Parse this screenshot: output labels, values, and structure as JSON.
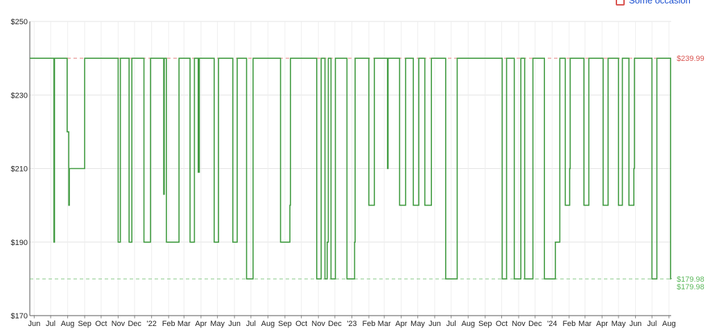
{
  "legend": {
    "item_label": "Some occasion"
  },
  "chart_data": {
    "type": "line",
    "title": "",
    "xlabel": "",
    "ylabel": "",
    "x_domain": [
      "2021-05-24",
      "2024-08-05"
    ],
    "ylim": [
      170,
      250
    ],
    "y_ticks": [
      250,
      230,
      210,
      190,
      170
    ],
    "y_tick_labels": [
      "$250",
      "$230",
      "$210",
      "$190",
      "$170"
    ],
    "x_ticks": [
      {
        "date": "2021-06-01",
        "label": "Jun"
      },
      {
        "date": "2021-07-01",
        "label": "Jul"
      },
      {
        "date": "2021-08-01",
        "label": "Aug"
      },
      {
        "date": "2021-09-01",
        "label": "Sep"
      },
      {
        "date": "2021-10-01",
        "label": "Oct"
      },
      {
        "date": "2021-11-01",
        "label": "Nov"
      },
      {
        "date": "2021-12-01",
        "label": "Dec"
      },
      {
        "date": "2022-01-01",
        "label": "'22"
      },
      {
        "date": "2022-02-01",
        "label": "Feb"
      },
      {
        "date": "2022-03-01",
        "label": "Mar"
      },
      {
        "date": "2022-04-01",
        "label": "Apr"
      },
      {
        "date": "2022-05-01",
        "label": "May"
      },
      {
        "date": "2022-06-01",
        "label": "Jun"
      },
      {
        "date": "2022-07-01",
        "label": "Jul"
      },
      {
        "date": "2022-08-01",
        "label": "Aug"
      },
      {
        "date": "2022-09-01",
        "label": "Sep"
      },
      {
        "date": "2022-10-01",
        "label": "Oct"
      },
      {
        "date": "2022-11-01",
        "label": "Nov"
      },
      {
        "date": "2022-12-01",
        "label": "Dec"
      },
      {
        "date": "2023-01-01",
        "label": "'23"
      },
      {
        "date": "2023-02-01",
        "label": "Feb"
      },
      {
        "date": "2023-03-01",
        "label": "Mar"
      },
      {
        "date": "2023-04-01",
        "label": "Apr"
      },
      {
        "date": "2023-05-01",
        "label": "May"
      },
      {
        "date": "2023-06-01",
        "label": "Jun"
      },
      {
        "date": "2023-07-01",
        "label": "Jul"
      },
      {
        "date": "2023-08-01",
        "label": "Aug"
      },
      {
        "date": "2023-09-01",
        "label": "Sep"
      },
      {
        "date": "2023-10-01",
        "label": "Oct"
      },
      {
        "date": "2023-11-01",
        "label": "Nov"
      },
      {
        "date": "2023-12-01",
        "label": "Dec"
      },
      {
        "date": "2024-01-01",
        "label": "'24"
      },
      {
        "date": "2024-02-01",
        "label": "Feb"
      },
      {
        "date": "2024-03-01",
        "label": "Mar"
      },
      {
        "date": "2024-04-01",
        "label": "Apr"
      },
      {
        "date": "2024-05-01",
        "label": "May"
      },
      {
        "date": "2024-06-01",
        "label": "Jun"
      },
      {
        "date": "2024-07-01",
        "label": "Jul"
      },
      {
        "date": "2024-08-01",
        "label": "Aug"
      }
    ],
    "grid": true,
    "reference_lines": [
      {
        "value": 239.99,
        "label": "$239.99",
        "color": "#d9534f",
        "style": "dashed"
      },
      {
        "value": 179.98,
        "label": "$179.98",
        "color": "#5cb85c",
        "style": "dashed"
      }
    ],
    "current_price_label": "$179.98",
    "series": [
      {
        "color": "#3f9a3f",
        "step": true,
        "points": [
          [
            "2021-05-24",
            239.99
          ],
          [
            "2021-07-07",
            190
          ],
          [
            "2021-07-08",
            239.99
          ],
          [
            "2021-07-31",
            220
          ],
          [
            "2021-08-03",
            200
          ],
          [
            "2021-08-04",
            210
          ],
          [
            "2021-09-01",
            239.99
          ],
          [
            "2021-11-01",
            190
          ],
          [
            "2021-11-05",
            239.99
          ],
          [
            "2021-11-21",
            190
          ],
          [
            "2021-11-26",
            239.99
          ],
          [
            "2021-12-18",
            190
          ],
          [
            "2021-12-30",
            239.99
          ],
          [
            "2022-01-23",
            203
          ],
          [
            "2022-01-24",
            239.99
          ],
          [
            "2022-01-28",
            190
          ],
          [
            "2022-02-20",
            239.99
          ],
          [
            "2022-03-12",
            190
          ],
          [
            "2022-03-20",
            239.99
          ],
          [
            "2022-03-27",
            209
          ],
          [
            "2022-03-29",
            239.99
          ],
          [
            "2022-04-25",
            190
          ],
          [
            "2022-05-03",
            239.99
          ],
          [
            "2022-05-29",
            190
          ],
          [
            "2022-06-06",
            239.99
          ],
          [
            "2022-06-23",
            180
          ],
          [
            "2022-07-05",
            239.99
          ],
          [
            "2022-08-24",
            190
          ],
          [
            "2022-09-10",
            200
          ],
          [
            "2022-09-11",
            239.99
          ],
          [
            "2022-10-29",
            180
          ],
          [
            "2022-11-06",
            239.99
          ],
          [
            "2022-11-13",
            180
          ],
          [
            "2022-11-17",
            190
          ],
          [
            "2022-11-19",
            239.99
          ],
          [
            "2022-11-24",
            180
          ],
          [
            "2022-12-02",
            239.99
          ],
          [
            "2022-12-23",
            180
          ],
          [
            "2023-01-06",
            190
          ],
          [
            "2023-01-07",
            239.99
          ],
          [
            "2023-02-01",
            200
          ],
          [
            "2023-02-11",
            239.99
          ],
          [
            "2023-03-07",
            210
          ],
          [
            "2023-03-08",
            239.99
          ],
          [
            "2023-03-29",
            200
          ],
          [
            "2023-04-09",
            239.99
          ],
          [
            "2023-04-23",
            200
          ],
          [
            "2023-05-03",
            239.99
          ],
          [
            "2023-05-14",
            200
          ],
          [
            "2023-05-26",
            239.99
          ],
          [
            "2023-06-21",
            180
          ],
          [
            "2023-07-12",
            239.99
          ],
          [
            "2023-10-02",
            180
          ],
          [
            "2023-10-10",
            239.99
          ],
          [
            "2023-10-24",
            180
          ],
          [
            "2023-11-05",
            239.99
          ],
          [
            "2023-11-12",
            180
          ],
          [
            "2023-11-27",
            239.99
          ],
          [
            "2023-12-18",
            180
          ],
          [
            "2024-01-07",
            190
          ],
          [
            "2024-01-15",
            239.99
          ],
          [
            "2024-01-25",
            200
          ],
          [
            "2024-02-02",
            210
          ],
          [
            "2024-02-03",
            239.99
          ],
          [
            "2024-02-28",
            200
          ],
          [
            "2024-03-08",
            239.99
          ],
          [
            "2024-04-03",
            200
          ],
          [
            "2024-04-12",
            239.99
          ],
          [
            "2024-05-01",
            200
          ],
          [
            "2024-05-08",
            239.99
          ],
          [
            "2024-05-20",
            200
          ],
          [
            "2024-05-29",
            210
          ],
          [
            "2024-05-30",
            239.99
          ],
          [
            "2024-07-01",
            180
          ],
          [
            "2024-07-10",
            239.99
          ],
          [
            "2024-08-04",
            180
          ],
          [
            "2024-08-05",
            179.98
          ]
        ]
      }
    ]
  }
}
